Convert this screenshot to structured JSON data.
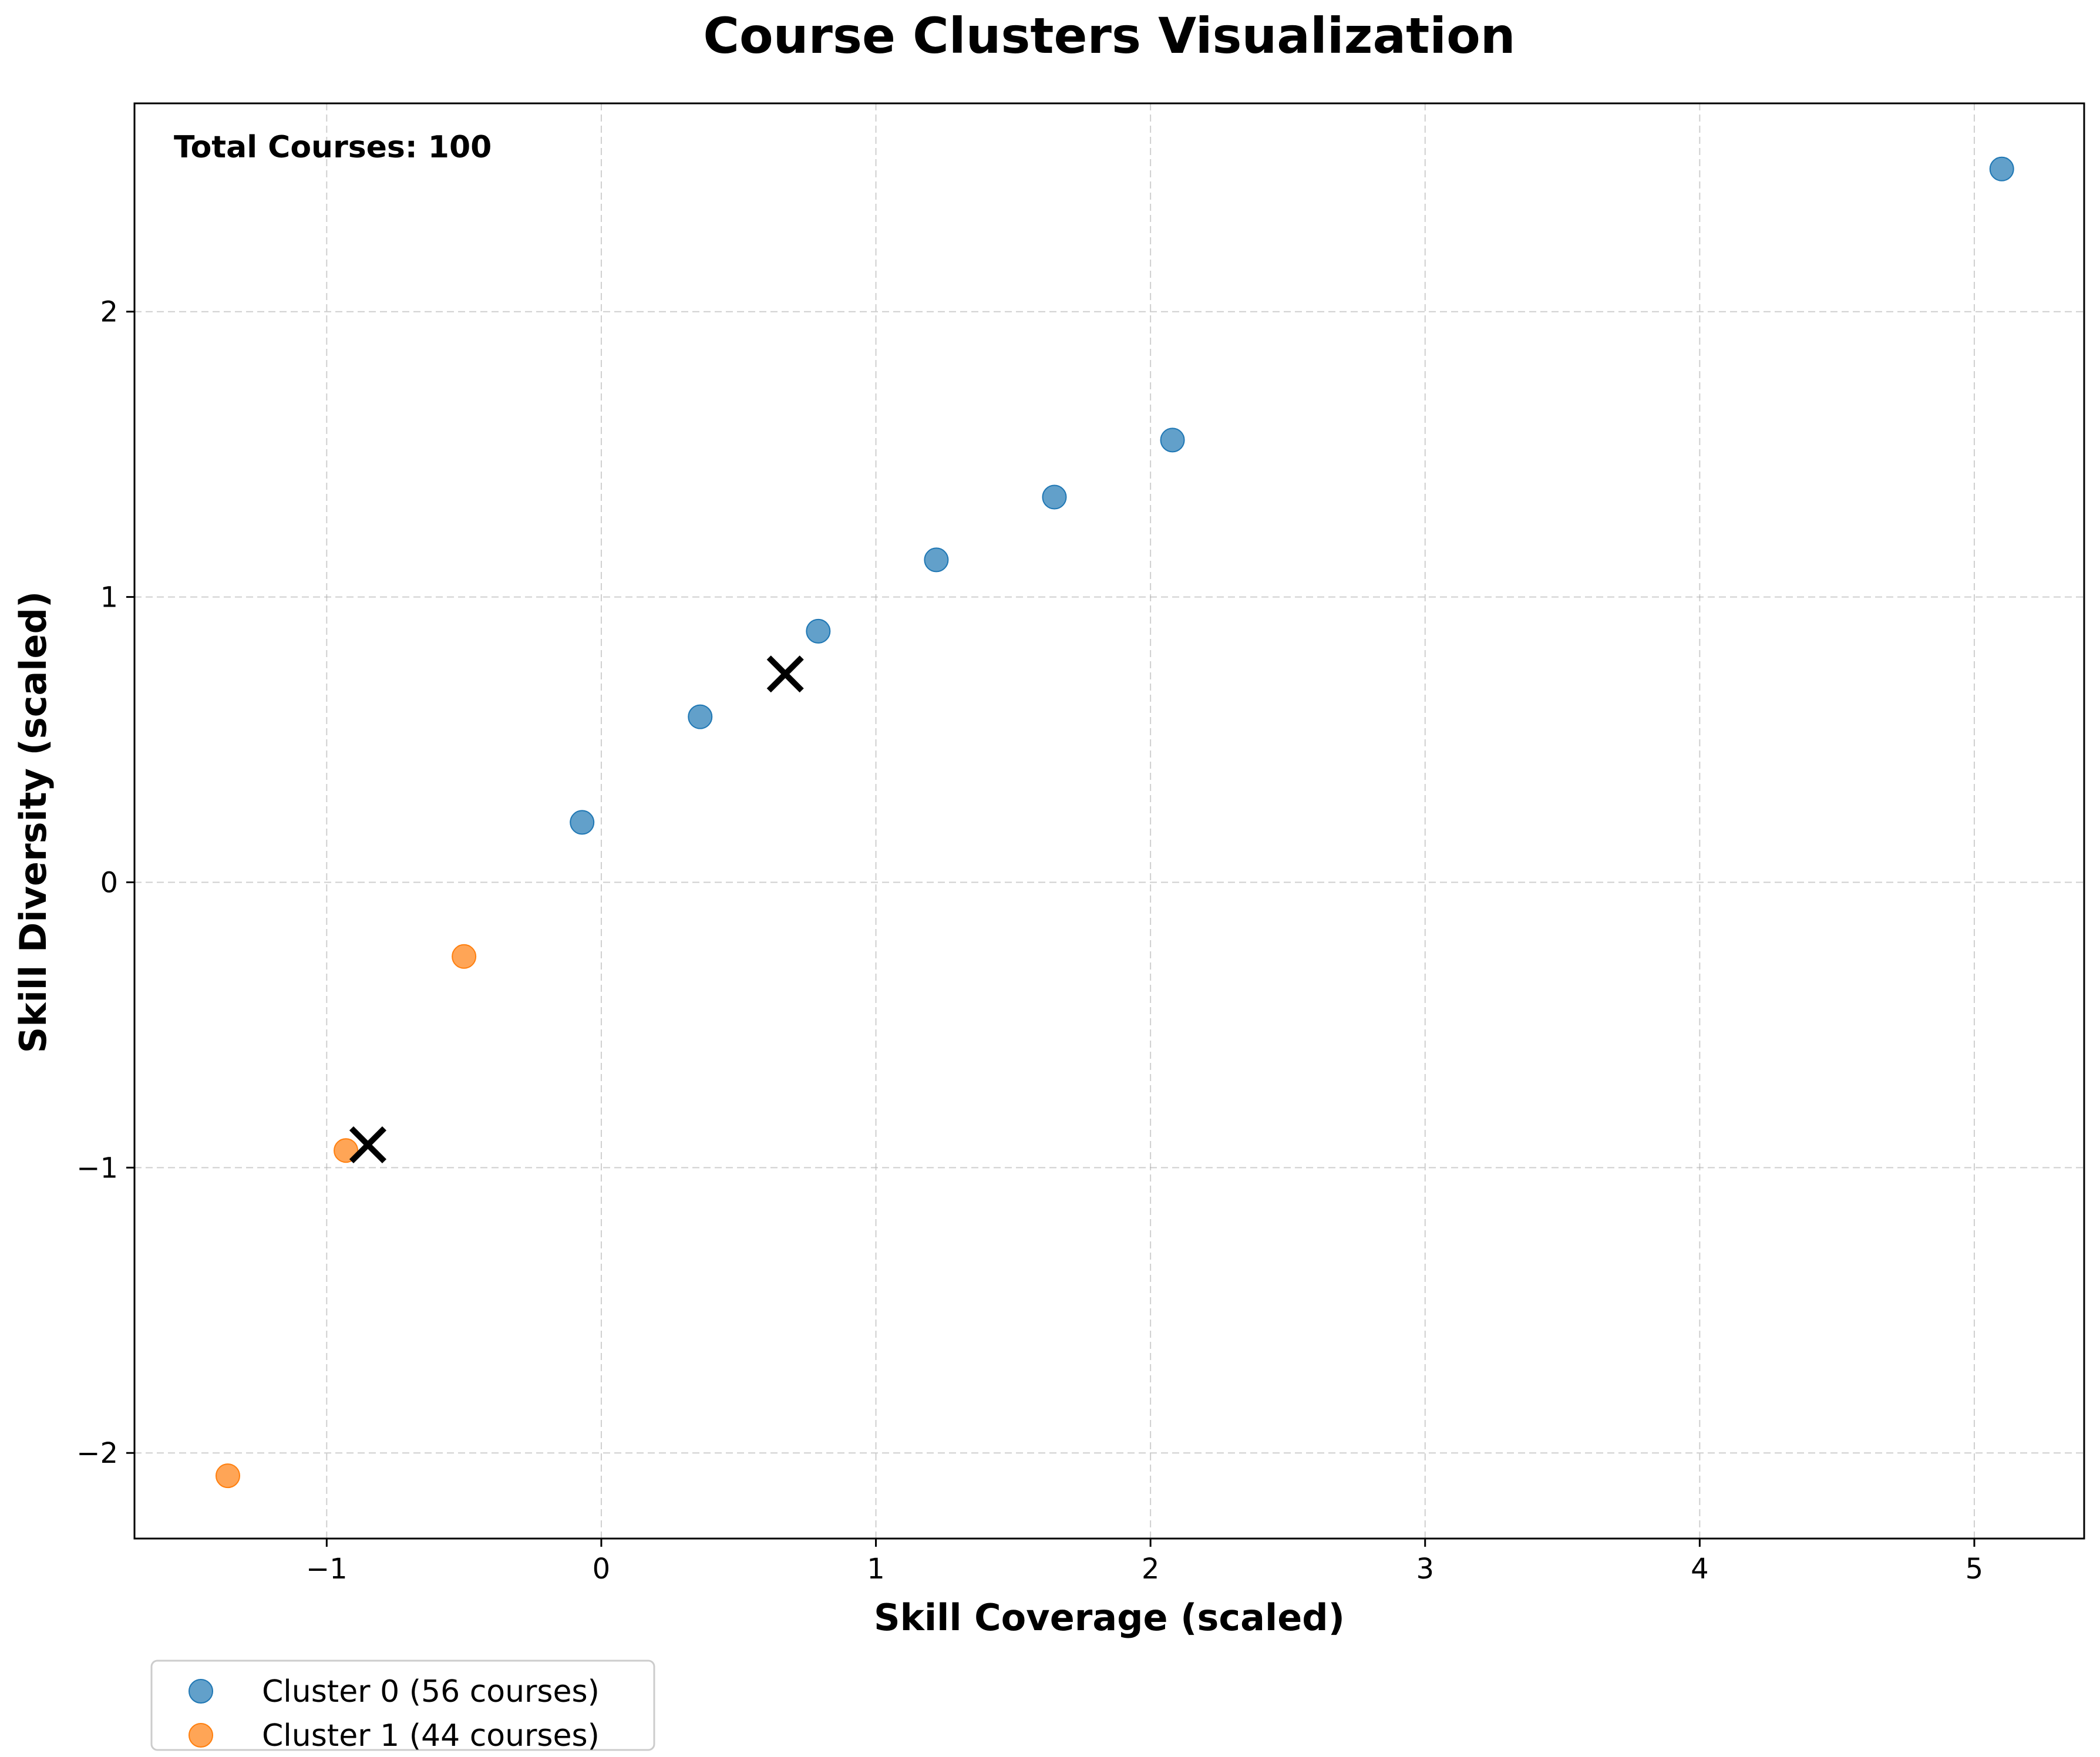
{
  "chart_data": {
    "type": "scatter",
    "title": "Course Clusters Visualization",
    "xlabel": "Skill Coverage (scaled)",
    "ylabel": "Skill Diversity (scaled)",
    "xlim": [
      -1.7,
      5.4
    ],
    "ylim": [
      -2.3,
      2.73
    ],
    "xticks": [
      -1,
      0,
      1,
      2,
      3,
      4,
      5
    ],
    "xtick_labels": [
      "−1",
      "0",
      "1",
      "2",
      "3",
      "4",
      "5"
    ],
    "yticks": [
      -2,
      -1,
      0,
      1,
      2
    ],
    "ytick_labels": [
      "−2",
      "−1",
      "0",
      "1",
      "2"
    ],
    "grid": true,
    "legend_position": "below-left",
    "annotation": "Total Courses: 100",
    "series": [
      {
        "name": "Cluster 0 (56 courses)",
        "color": "#1f77b4",
        "points": [
          {
            "x": -0.07,
            "y": 0.21
          },
          {
            "x": 0.36,
            "y": 0.58
          },
          {
            "x": 0.79,
            "y": 0.88
          },
          {
            "x": 1.22,
            "y": 1.13
          },
          {
            "x": 1.65,
            "y": 1.35
          },
          {
            "x": 2.08,
            "y": 1.55
          },
          {
            "x": 5.1,
            "y": 2.5
          }
        ]
      },
      {
        "name": "Cluster 1 (44 courses)",
        "color": "#ff7f0e",
        "points": [
          {
            "x": -1.36,
            "y": -2.08
          },
          {
            "x": -0.93,
            "y": -0.94
          },
          {
            "x": -0.5,
            "y": -0.26
          }
        ]
      }
    ],
    "centroids": [
      {
        "x": 0.67,
        "y": 0.73
      },
      {
        "x": -0.85,
        "y": -0.92
      }
    ],
    "centroid_color": "#000000"
  }
}
